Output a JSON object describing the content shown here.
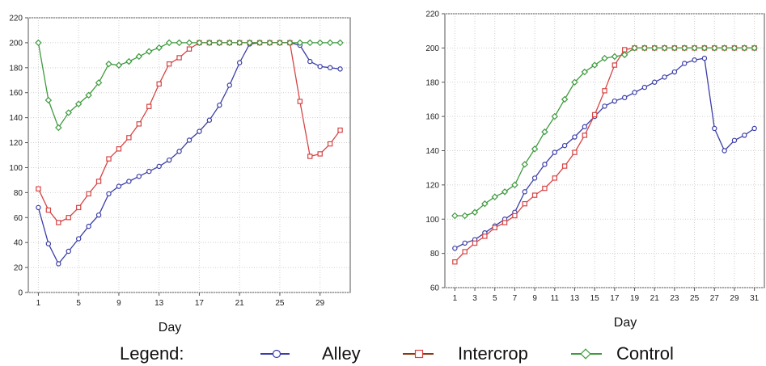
{
  "chart_data": [
    {
      "type": "line",
      "xlabel": "Day",
      "ylabel": "",
      "xlim": [
        0,
        32
      ],
      "ylim": [
        0,
        220
      ],
      "xticks": [
        1,
        5,
        9,
        13,
        17,
        21,
        25,
        29
      ],
      "yticks": [
        0,
        20,
        40,
        60,
        80,
        100,
        120,
        140,
        160,
        180,
        200,
        220
      ],
      "grid": true,
      "x": [
        1,
        2,
        3,
        4,
        5,
        6,
        7,
        8,
        9,
        10,
        11,
        12,
        13,
        14,
        15,
        16,
        17,
        18,
        19,
        20,
        21,
        22,
        23,
        24,
        25,
        26,
        27,
        28,
        29,
        30,
        31
      ],
      "series": [
        {
          "name": "Alley",
          "values": [
            68,
            39,
            23,
            33,
            43,
            53,
            62,
            79,
            85,
            89,
            93,
            97,
            101,
            106,
            113,
            122,
            129,
            138,
            150,
            166,
            184,
            199,
            200,
            200,
            200,
            200,
            198,
            185,
            181,
            180,
            179
          ]
        },
        {
          "name": "Intercrop",
          "values": [
            83,
            66,
            56,
            60,
            68,
            79,
            89,
            107,
            115,
            124,
            135,
            149,
            167,
            183,
            188,
            195,
            200,
            200,
            200,
            200,
            200,
            200,
            200,
            200,
            200,
            200,
            153,
            109,
            111,
            119,
            130
          ]
        },
        {
          "name": "Control",
          "values": [
            200,
            154,
            132,
            144,
            151,
            158,
            168,
            183,
            182,
            185,
            189,
            193,
            196,
            200,
            200,
            200,
            200,
            200,
            200,
            200,
            200,
            200,
            200,
            200,
            200,
            200,
            200,
            200,
            200,
            200,
            200
          ]
        }
      ]
    },
    {
      "type": "line",
      "xlabel": "Day",
      "ylabel": "",
      "xlim": [
        0,
        32
      ],
      "ylim": [
        60,
        220
      ],
      "xticks": [
        1,
        3,
        5,
        7,
        9,
        11,
        13,
        15,
        17,
        19,
        21,
        23,
        25,
        27,
        29,
        31
      ],
      "yticks": [
        60,
        80,
        100,
        120,
        140,
        160,
        180,
        200,
        220
      ],
      "grid": true,
      "x": [
        1,
        2,
        3,
        4,
        5,
        6,
        7,
        8,
        9,
        10,
        11,
        12,
        13,
        14,
        15,
        16,
        17,
        18,
        19,
        20,
        21,
        22,
        23,
        24,
        25,
        26,
        27,
        28,
        29,
        30,
        31
      ],
      "series": [
        {
          "name": "Alley",
          "values": [
            83,
            86,
            88,
            92,
            96,
            100,
            104,
            116,
            124,
            132,
            139,
            143,
            148,
            154,
            160,
            166,
            169,
            171,
            174,
            177,
            180,
            183,
            186,
            191,
            193,
            194,
            153,
            140,
            146,
            149,
            153
          ]
        },
        {
          "name": "Intercrop",
          "values": [
            75,
            81,
            86,
            90,
            95,
            98,
            102,
            109,
            114,
            118,
            124,
            131,
            139,
            149,
            161,
            175,
            190,
            199,
            200,
            200,
            200,
            200,
            200,
            200,
            200,
            200,
            200,
            200,
            200,
            200,
            200
          ]
        },
        {
          "name": "Control",
          "values": [
            102,
            102,
            104,
            109,
            113,
            116,
            120,
            132,
            141,
            151,
            160,
            170,
            180,
            186,
            190,
            194,
            195,
            196,
            200,
            200,
            200,
            200,
            200,
            200,
            200,
            200,
            200,
            200,
            200,
            200,
            200
          ]
        }
      ]
    }
  ],
  "series_styles": [
    {
      "name": "Alley",
      "color": "#3b3ea6",
      "marker": "circle"
    },
    {
      "name": "Intercrop",
      "color": "#d64545",
      "marker": "square"
    },
    {
      "name": "Control",
      "color": "#3f9a3f",
      "marker": "diamond"
    }
  ],
  "legend": {
    "title": "Legend:",
    "items": [
      {
        "label": "Alley",
        "color": "#3b3ea6",
        "line_color": "#3b3ea6",
        "marker": "circle"
      },
      {
        "label": "Intercrop",
        "color": "#d64545",
        "line_color": "#8a3a12",
        "marker": "square"
      },
      {
        "label": "Control",
        "color": "#3f9a3f",
        "line_color": "#3f9a3f",
        "marker": "diamond"
      }
    ]
  }
}
